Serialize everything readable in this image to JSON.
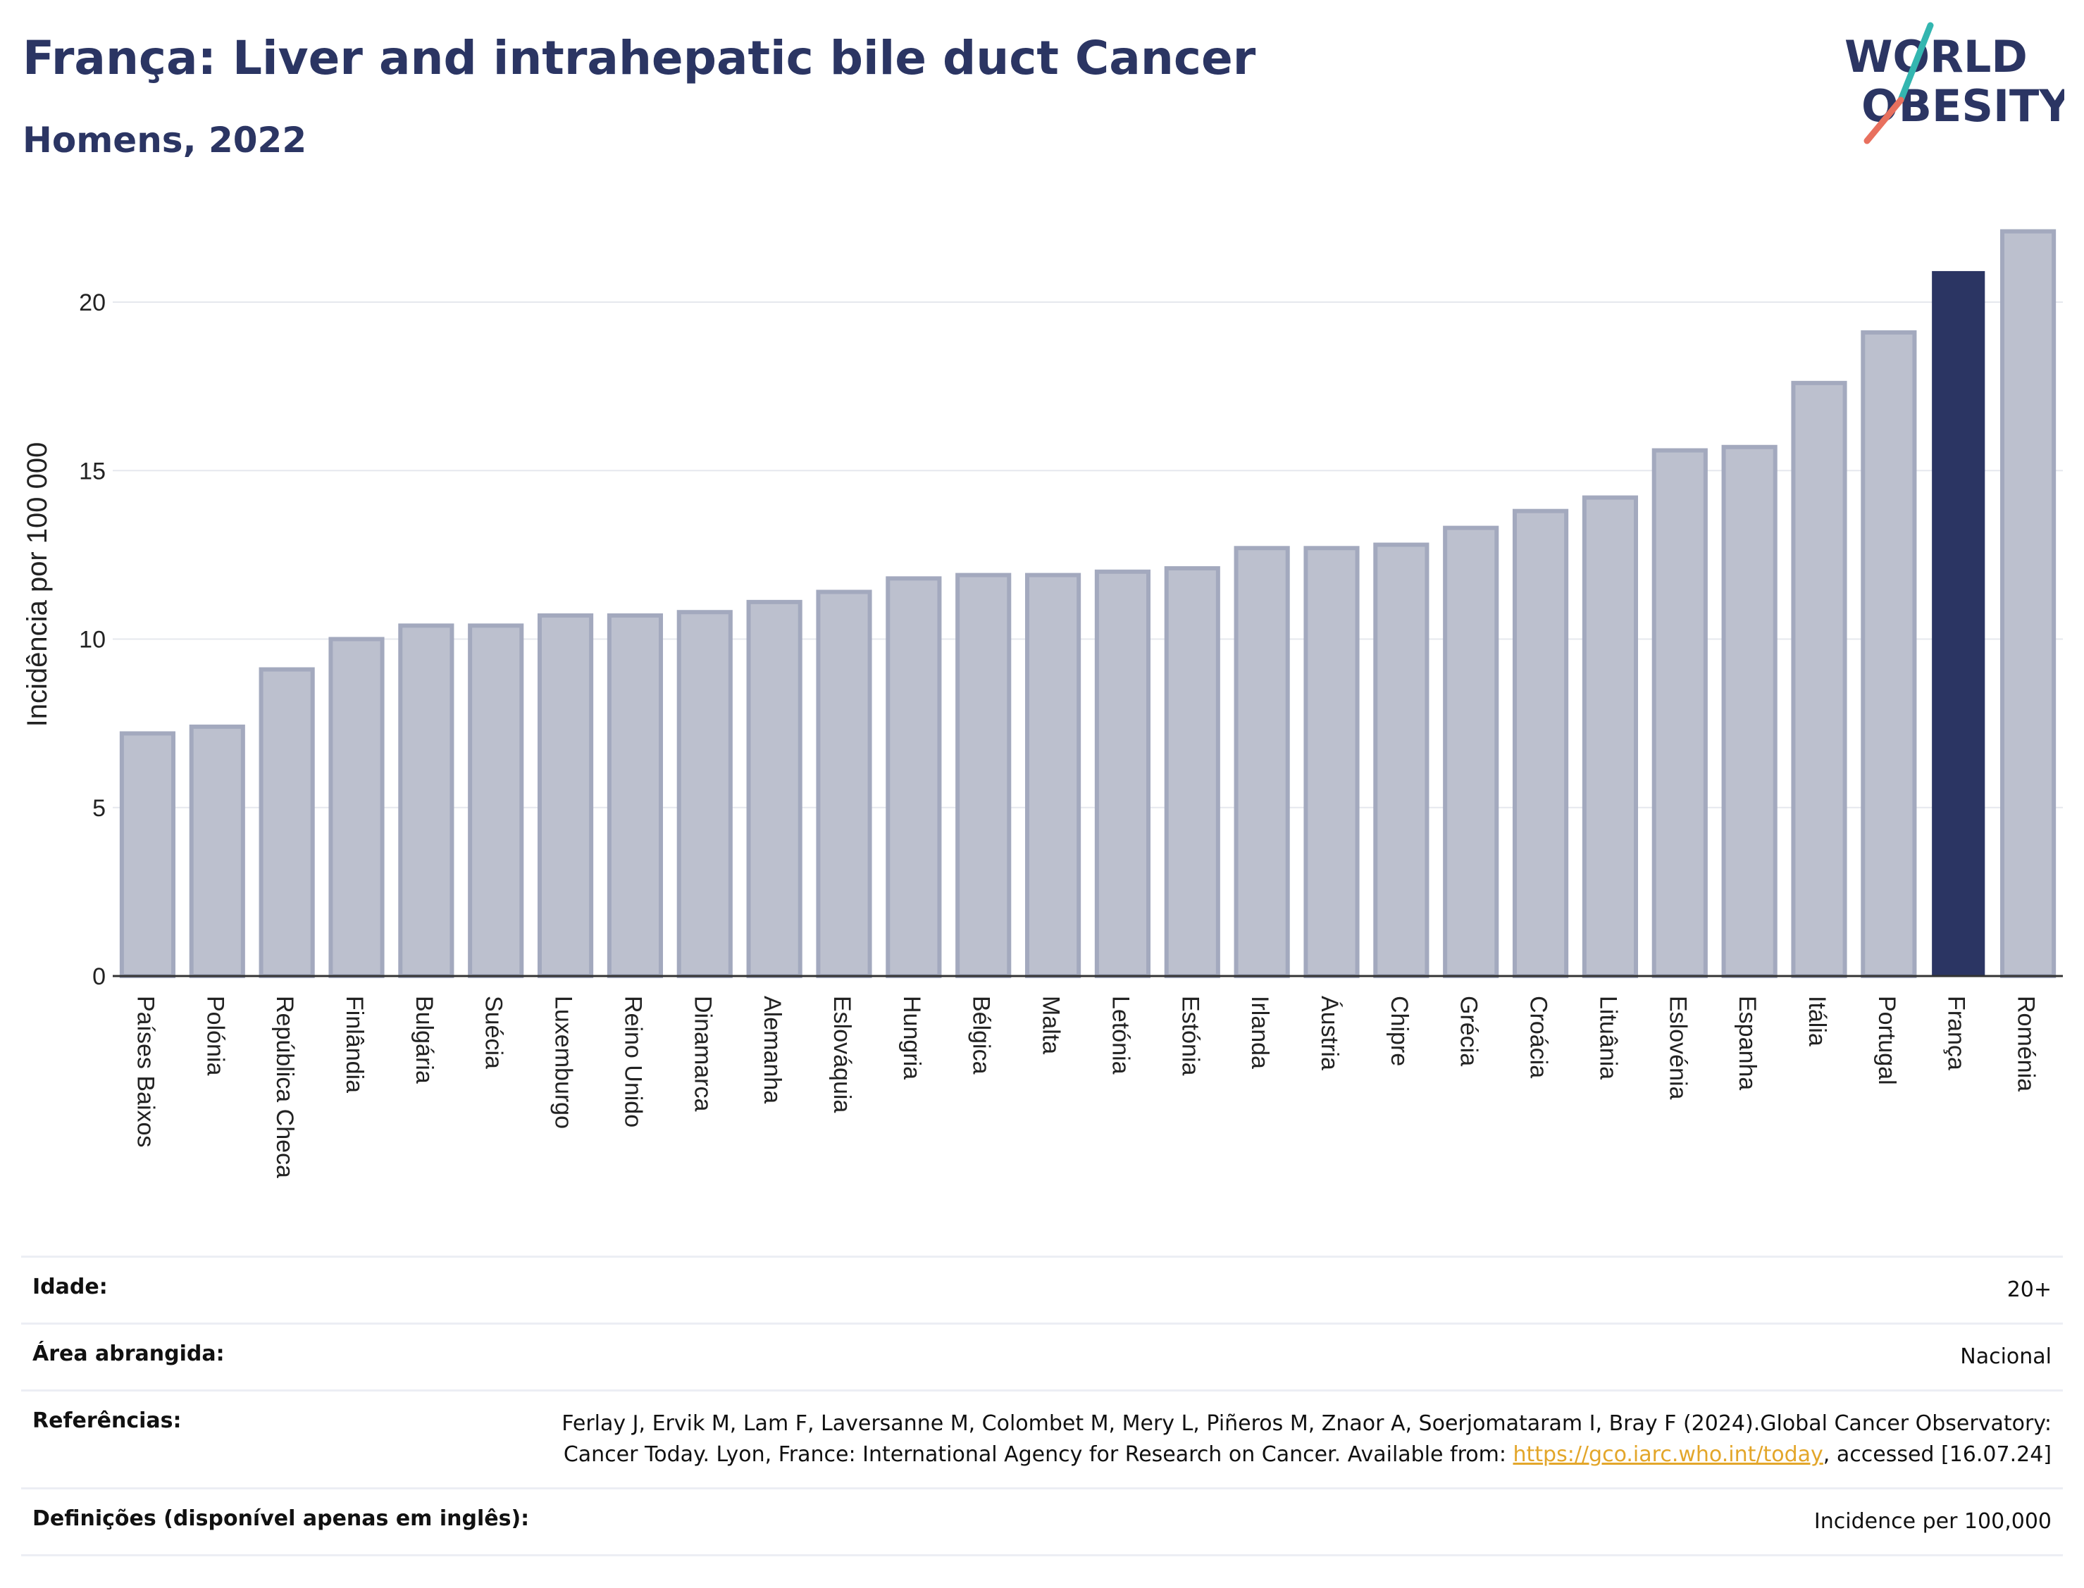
{
  "header": {
    "title": "França: Liver and intrahepatic bile duct Cancer",
    "subtitle": "Homens, 2022"
  },
  "logo": {
    "line1": "WORLD",
    "line2": "OBESITY",
    "accent_teal": "#33b6b0",
    "accent_coral": "#e8705e"
  },
  "colors": {
    "highlight": "#2b3563",
    "bar_fill": "#bcc0ce",
    "bar_stroke": "#a3a9be",
    "grid": "#e6e8ee",
    "axis": "#333333"
  },
  "chart_data": {
    "type": "bar",
    "ylabel": "Incidência por 100 000",
    "xlabel": "",
    "ylim": [
      0,
      22.5
    ],
    "yticks": [
      0,
      5,
      10,
      15,
      20
    ],
    "highlight": "França",
    "categories": [
      "Países Baixos",
      "Polónia",
      "República Checa",
      "Finlândia",
      "Bulgária",
      "Suécia",
      "Luxemburgo",
      "Reino Unido",
      "Dinamarca",
      "Alemanha",
      "Eslováquia",
      "Hungria",
      "Bélgica",
      "Malta",
      "Letónia",
      "Estónia",
      "Irlanda",
      "Áustria",
      "Chipre",
      "Grécia",
      "Croácia",
      "Lituânia",
      "Eslovénia",
      "Espanha",
      "Itália",
      "Portugal",
      "França",
      "Roménia"
    ],
    "values": [
      7.2,
      7.4,
      9.1,
      10.0,
      10.4,
      10.4,
      10.7,
      10.7,
      10.8,
      11.1,
      11.4,
      11.8,
      11.9,
      11.9,
      12.0,
      12.1,
      12.7,
      12.7,
      12.8,
      13.3,
      13.8,
      14.2,
      15.6,
      15.7,
      17.6,
      19.1,
      20.9,
      22.1
    ]
  },
  "meta": {
    "age_label": "Idade:",
    "age_value": "20+",
    "area_label": "Área abrangida:",
    "area_value": "Nacional",
    "ref_label": "Referências:",
    "ref_text_1": "Ferlay J, Ervik M, Lam F, Laversanne M, Colombet M, Mery L, Piñeros M, Znaor A, Soerjomataram I, Bray F (2024).Global Cancer Observatory: Cancer Today. Lyon, France: International Agency for Research on Cancer. Available from: ",
    "ref_link": "https://gco.iarc.who.int/today",
    "ref_text_2": ", accessed [16.07.24]",
    "def_label": "Definições (disponível apenas em inglês):",
    "def_value": "Incidence per 100,000"
  }
}
